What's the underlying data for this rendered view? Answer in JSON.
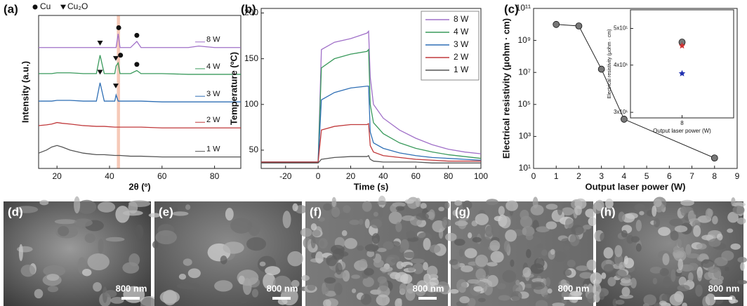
{
  "chart_data": [
    {
      "type": "line",
      "panel_label": "(a)",
      "xlabel": "2θ (º)",
      "ylabel": "Intensity (a.u.)",
      "xlim": [
        13,
        90
      ],
      "ylim": [
        0,
        100
      ],
      "xticks": [
        20,
        40,
        60,
        80
      ],
      "yticks": [],
      "highlight_band": [
        42.8,
        44.0
      ],
      "series_labels": "right",
      "marker_legend": {
        "circle": "Cu",
        "triangle": "Cu₂O"
      },
      "markers": {
        "circle": [
          [
            43.5,
            92
          ],
          [
            50.4,
            87
          ],
          [
            44.2,
            74
          ],
          [
            50.4,
            68
          ]
        ],
        "triangle": [
          [
            36.4,
            82
          ],
          [
            42.4,
            72
          ],
          [
            36.4,
            63
          ],
          [
            42.4,
            54
          ]
        ]
      },
      "x": [
        13,
        16,
        18,
        20,
        22,
        25,
        30,
        35,
        36.4,
        38,
        42,
        42.5,
        43.3,
        44,
        48,
        50.4,
        52,
        60,
        70,
        74,
        80,
        90
      ],
      "series": [
        {
          "name": "8 W",
          "color": "#a070c8",
          "values": [
            79,
            79,
            79,
            79,
            79,
            79,
            79,
            79,
            79,
            79,
            79,
            79,
            88,
            79,
            79,
            83,
            79,
            79,
            79,
            80,
            79,
            79
          ]
        },
        {
          "name": "4 W",
          "color": "#3a9a5c",
          "values": [
            62,
            62,
            62,
            62.5,
            62.5,
            62.5,
            62,
            62,
            74,
            62,
            62,
            67,
            69,
            62,
            62,
            64,
            62,
            62,
            61.5,
            61.5,
            61.5,
            61.5
          ]
        },
        {
          "name": "3 W",
          "color": "#2f6fb5",
          "values": [
            44,
            44,
            44,
            44.5,
            44.5,
            44.5,
            44,
            44,
            56,
            44,
            44,
            48,
            44,
            44,
            44,
            44,
            44,
            43.5,
            43.5,
            43.5,
            43.5,
            43.5
          ]
        },
        {
          "name": "2 W",
          "color": "#c0393b",
          "values": [
            28,
            28.5,
            29,
            30,
            29.5,
            29,
            28,
            27.5,
            27.5,
            27.5,
            27,
            27,
            27,
            27,
            27,
            27,
            27,
            26.5,
            26.5,
            26.5,
            26.5,
            26.5
          ]
        },
        {
          "name": "1 W",
          "color": "#555555",
          "values": [
            10,
            12,
            14,
            15,
            14,
            12,
            10,
            9,
            9,
            9,
            8.5,
            8.5,
            8.5,
            8.5,
            8,
            8,
            8,
            7.5,
            7.5,
            7.5,
            7.5,
            7.5
          ]
        }
      ]
    },
    {
      "type": "line",
      "panel_label": "(b)",
      "xlabel": "Time (s)",
      "ylabel": "Temperature (ºC)",
      "xlim": [
        -35,
        100
      ],
      "ylim": [
        30,
        205
      ],
      "xticks": [
        -20,
        0,
        20,
        40,
        60,
        80,
        100
      ],
      "yticks": [
        50,
        100,
        150,
        200
      ],
      "legend": "upper right",
      "x": [
        -35,
        -20,
        -0.5,
        0,
        2,
        10,
        20,
        30,
        31,
        32,
        34,
        40,
        50,
        60,
        70,
        80,
        90,
        100
      ],
      "series": [
        {
          "name": "8 W",
          "color": "#a070c8",
          "values": [
            37,
            37,
            37,
            37,
            160,
            168,
            172,
            178,
            180,
            130,
            100,
            85,
            72,
            63,
            56,
            51,
            48,
            46
          ]
        },
        {
          "name": "4 W",
          "color": "#3a9a5c",
          "values": [
            37,
            37,
            37,
            37,
            140,
            150,
            155,
            158,
            160,
            100,
            80,
            68,
            58,
            52,
            48,
            45,
            43,
            41
          ]
        },
        {
          "name": "3 W",
          "color": "#2f6fb5",
          "values": [
            37,
            37,
            37,
            37,
            105,
            113,
            118,
            120,
            120,
            70,
            58,
            52,
            47,
            44,
            42,
            41,
            40,
            39
          ]
        },
        {
          "name": "2 W",
          "color": "#c0393b",
          "values": [
            37,
            37,
            37,
            37,
            72,
            76,
            78,
            78,
            79,
            55,
            48,
            44,
            42,
            40,
            39,
            38,
            38,
            38
          ]
        },
        {
          "name": "1 W",
          "color": "#555555",
          "values": [
            36,
            36,
            36,
            36,
            40,
            42,
            43,
            43,
            44,
            40,
            38,
            37,
            37,
            37,
            36,
            36,
            36,
            36
          ]
        }
      ]
    },
    {
      "type": "line",
      "panel_label": "(c)",
      "xlabel": "Output laser power (W)",
      "ylabel": "Electrical resistivity (μohm · cm)",
      "log_y": true,
      "xlim": [
        0,
        9
      ],
      "ylim": [
        10,
        100000000000
      ],
      "xticks": [
        0,
        1,
        2,
        3,
        4,
        5,
        6,
        7,
        8,
        9
      ],
      "yticks": [
        {
          "value": 10,
          "label": "10¹"
        },
        {
          "value": 1000,
          "label": "10³"
        },
        {
          "value": 100000,
          "label": "10⁵"
        },
        {
          "value": 10000000,
          "label": "10⁷"
        },
        {
          "value": 1000000000,
          "label": "10⁹"
        },
        {
          "value": 100000000000,
          "label": "10¹¹"
        }
      ],
      "x": [
        1,
        2,
        3,
        4,
        8
      ],
      "series": [
        {
          "color": "#222222",
          "marker_color": "#777777",
          "values": [
            10000000000,
            8000000000,
            16000000,
            12000,
            45
          ]
        }
      ],
      "inset": {
        "xlabel": "Output laser power (W)",
        "ylabel": "Electrical resistivity (μohm · cm)",
        "log_y": true,
        "xlim": [
          7.6,
          8.4
        ],
        "ylim": [
          29,
          56
        ],
        "xticks": [
          8
        ],
        "yticks": [
          {
            "value": 30,
            "label": "3x10¹"
          },
          {
            "value": 40,
            "label": "4x10¹"
          },
          {
            "value": 50,
            "label": "5x10¹"
          }
        ],
        "x": [
          8
        ],
        "series": [
          {
            "color": "#777777",
            "marker": "circle",
            "values": [
              46
            ]
          },
          {
            "color": "#d03030",
            "marker": "star",
            "values": [
              45
            ]
          },
          {
            "color": "#2030b0",
            "marker": "star",
            "values": [
              38
            ]
          }
        ]
      }
    }
  ],
  "images": [
    {
      "label": "(d)",
      "scale_bar": "800 nm"
    },
    {
      "label": "(e)",
      "scale_bar": "800 nm"
    },
    {
      "label": "(f)",
      "scale_bar": "800 nm"
    },
    {
      "label": "(g)",
      "scale_bar": "800 nm"
    },
    {
      "label": "(h)",
      "scale_bar": "800 nm"
    }
  ]
}
